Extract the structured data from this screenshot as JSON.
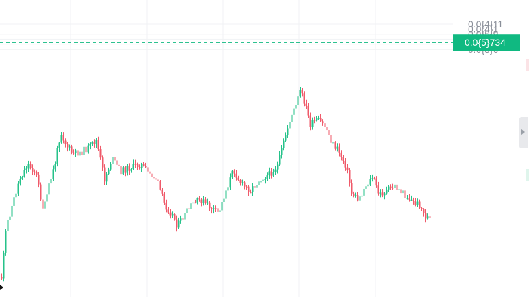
{
  "chart_data": {
    "type": "candlestick",
    "title": "",
    "xlabel": "",
    "ylabel": "",
    "y_axis_position": "right",
    "grid": true,
    "ylim": [
      5.6e-06,
      1.13e-05
    ],
    "y_ticks": [
      {
        "value": 1.1e-05,
        "label": "0.0{4}11"
      },
      {
        "value": 1e-05,
        "label": "0.0{4}1"
      },
      {
        "value": 9e-06,
        "label": "0.0{5}9"
      },
      {
        "value": 8e-06,
        "label": "0.0{5}8"
      },
      {
        "value": 7e-06,
        "label": "0.0{5}7"
      },
      {
        "value": 6e-06,
        "label": "0.0{5}6"
      }
    ],
    "last_price": {
      "value": 7.34e-06,
      "label": "0.0{5}734",
      "line_style": "dashed"
    },
    "colors": {
      "up": "#26c28a",
      "down": "#ef5a6a",
      "last_price": "#10b981",
      "grid": "#f1f2f4",
      "tick_text": "#8a8f99"
    }
  }
}
